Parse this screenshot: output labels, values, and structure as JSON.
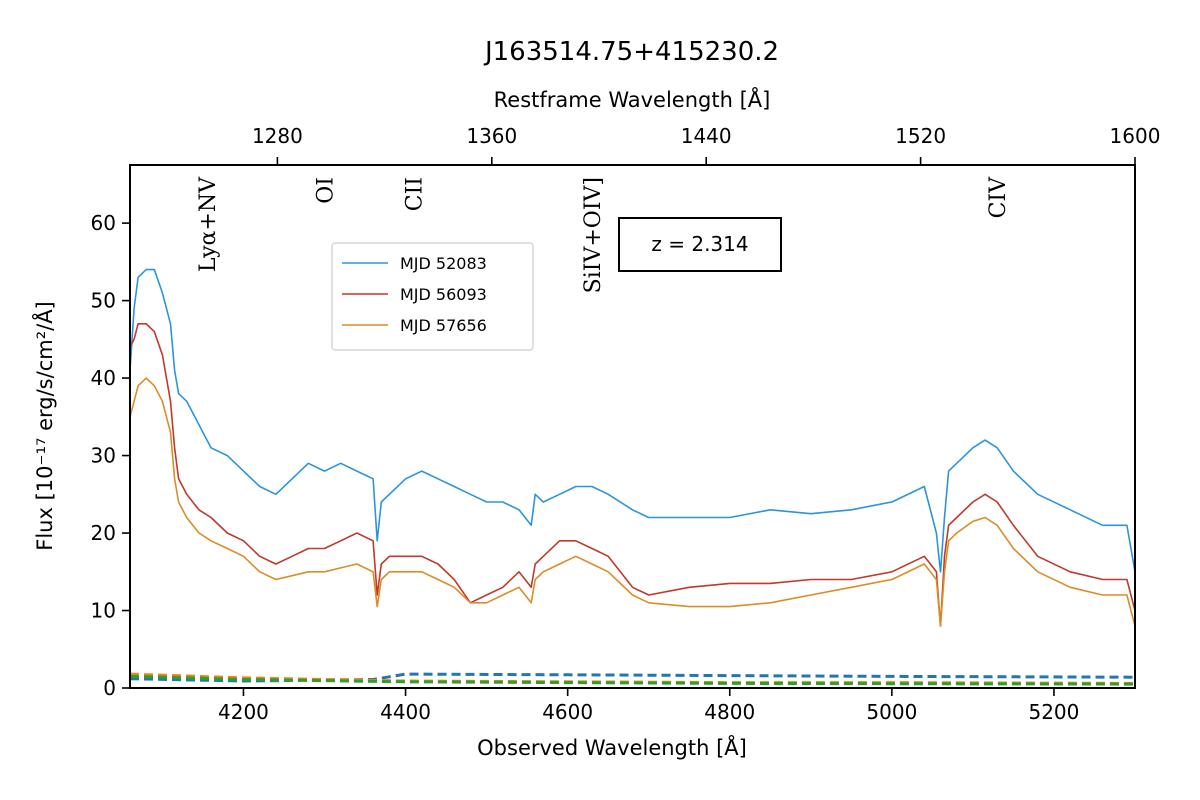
{
  "chart_data": {
    "type": "line",
    "title": "J163514.75+415230.2",
    "xlabel": "Observed Wavelength [Å]",
    "ylabel": "Flux [10⁻¹⁷ erg/s/cm²/Å]",
    "top_xlabel": "Restframe Wavelength [Å]",
    "xlim": [
      4060,
      5300
    ],
    "ylim": [
      0,
      67.5
    ],
    "top_xlim": [
      1225,
      1600
    ],
    "x_ticks": [
      4200,
      4400,
      4600,
      4800,
      5000,
      5200
    ],
    "y_ticks": [
      0,
      10,
      20,
      30,
      40,
      50,
      60
    ],
    "top_ticks": [
      1280,
      1360,
      1440,
      1520,
      1600
    ],
    "annotation": "z = 2.314",
    "legend_position": "upper-left-center",
    "line_labels": [
      {
        "text": "Lyα+NV",
        "x": 4155
      },
      {
        "text": "OI",
        "x": 4300
      },
      {
        "text": "CII",
        "x": 4410
      },
      {
        "text": "SiIV+OIV]",
        "x": 4630
      },
      {
        "text": "CIV",
        "x": 5130
      }
    ],
    "series": [
      {
        "name": "MJD 52083",
        "color": "#2b95db",
        "x": [
          4060,
          4065,
          4070,
          4080,
          4090,
          4100,
          4110,
          4115,
          4120,
          4130,
          4145,
          4160,
          4180,
          4200,
          4220,
          4240,
          4260,
          4280,
          4300,
          4320,
          4340,
          4360,
          4365,
          4370,
          4380,
          4400,
          4420,
          4440,
          4460,
          4480,
          4500,
          4520,
          4540,
          4555,
          4560,
          4570,
          4590,
          4610,
          4630,
          4650,
          4680,
          4700,
          4750,
          4800,
          4850,
          4900,
          4950,
          5000,
          5040,
          5055,
          5060,
          5065,
          5070,
          5080,
          5100,
          5115,
          5130,
          5150,
          5180,
          5220,
          5260,
          5290,
          5300
        ],
        "values": [
          41,
          49,
          53,
          54,
          54,
          51,
          47,
          41,
          38,
          37,
          34,
          31,
          30,
          28,
          26,
          25,
          27,
          29,
          28,
          29,
          28,
          27,
          19,
          24,
          25,
          27,
          28,
          27,
          26,
          25,
          24,
          24,
          23,
          21,
          25,
          24,
          25,
          26,
          26,
          25,
          23,
          22,
          22,
          22,
          23,
          22.5,
          23,
          24,
          26,
          20,
          15,
          22,
          28,
          29,
          31,
          32,
          31,
          28,
          25,
          23,
          21,
          21,
          15
        ]
      },
      {
        "name": "MJD 56093",
        "color": "#c0392b",
        "x": [
          4060,
          4065,
          4070,
          4080,
          4090,
          4100,
          4110,
          4115,
          4120,
          4130,
          4145,
          4160,
          4180,
          4200,
          4220,
          4240,
          4260,
          4280,
          4300,
          4320,
          4340,
          4360,
          4365,
          4370,
          4380,
          4400,
          4420,
          4440,
          4460,
          4480,
          4500,
          4520,
          4540,
          4555,
          4560,
          4570,
          4590,
          4610,
          4630,
          4650,
          4680,
          4700,
          4750,
          4800,
          4850,
          4900,
          4950,
          5000,
          5040,
          5055,
          5060,
          5065,
          5070,
          5080,
          5100,
          5115,
          5130,
          5150,
          5180,
          5220,
          5260,
          5290,
          5300
        ],
        "values": [
          44,
          45,
          47,
          47,
          46,
          43,
          37,
          31,
          27,
          25,
          23,
          22,
          20,
          19,
          17,
          16,
          17,
          18,
          18,
          19,
          20,
          19,
          12,
          16,
          17,
          17,
          17,
          16,
          14,
          11,
          12,
          13,
          15,
          13,
          16,
          17,
          19,
          19,
          18,
          17,
          13,
          12,
          13,
          13.5,
          13.5,
          14,
          14,
          15,
          17,
          15,
          8,
          17,
          21,
          22,
          24,
          25,
          24,
          21,
          17,
          15,
          14,
          14,
          10
        ]
      },
      {
        "name": "MJD 57656",
        "color": "#dc8c26",
        "x": [
          4060,
          4065,
          4070,
          4080,
          4090,
          4100,
          4110,
          4115,
          4120,
          4130,
          4145,
          4160,
          4180,
          4200,
          4220,
          4240,
          4260,
          4280,
          4300,
          4320,
          4340,
          4360,
          4365,
          4370,
          4380,
          4400,
          4420,
          4440,
          4460,
          4480,
          4500,
          4520,
          4540,
          4555,
          4560,
          4570,
          4590,
          4610,
          4630,
          4650,
          4680,
          4700,
          4750,
          4800,
          4850,
          4900,
          4950,
          5000,
          5040,
          5055,
          5060,
          5065,
          5070,
          5080,
          5100,
          5115,
          5130,
          5150,
          5180,
          5220,
          5260,
          5290,
          5300
        ],
        "values": [
          35,
          37,
          39,
          40,
          39,
          37,
          33,
          27,
          24,
          22,
          20,
          19,
          18,
          17,
          15,
          14,
          14.5,
          15,
          15,
          15.5,
          16,
          15,
          10.5,
          14,
          15,
          15,
          15,
          14,
          13,
          11,
          11,
          12,
          13,
          11,
          14,
          15,
          16,
          17,
          16,
          15,
          12,
          11,
          10.5,
          10.5,
          11,
          12,
          13,
          14,
          16,
          14,
          8,
          15,
          19,
          20,
          21.5,
          22,
          21,
          18,
          15,
          13,
          12,
          12,
          8
        ]
      },
      {
        "name": "",
        "color": "#1f77b4",
        "dashed": true,
        "x": [
          4060,
          4200,
          4360,
          4400,
          4600,
          4800,
          5000,
          5300
        ],
        "values": [
          1.2,
          0.9,
          1.1,
          1.8,
          1.7,
          1.6,
          1.5,
          1.4
        ]
      },
      {
        "name": "",
        "color": "#ff7f0e",
        "dashed": true,
        "x": [
          4060,
          4200,
          4400,
          4600,
          4800,
          5000,
          5300
        ],
        "values": [
          1.8,
          1.3,
          0.9,
          0.8,
          0.7,
          0.7,
          0.6
        ]
      },
      {
        "name": "",
        "color": "#2ca02c",
        "dashed": true,
        "x": [
          4060,
          4200,
          4400,
          4600,
          4800,
          5000,
          5300
        ],
        "values": [
          1.5,
          1.1,
          0.8,
          0.7,
          0.6,
          0.55,
          0.5
        ]
      }
    ]
  }
}
